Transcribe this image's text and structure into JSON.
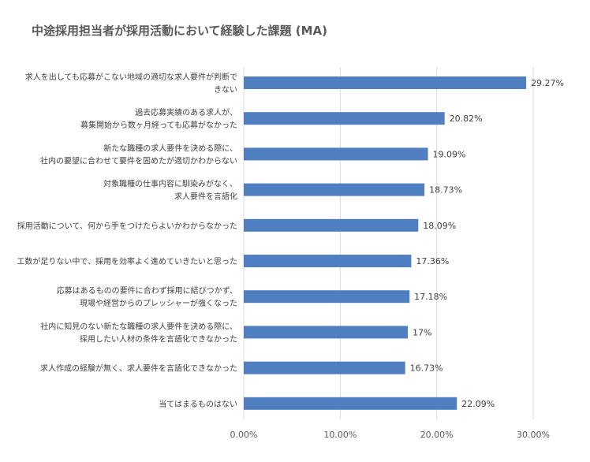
{
  "chart_data": {
    "type": "bar",
    "orientation": "horizontal",
    "title": "中途採用担当者が採用活動において経験した課題 (MA)",
    "categories": [
      "求人を出しても応募がこない地域の適切な求人要件が判断で\nきない",
      "過去応募実績のある求人が、\n募集開始から数ヶ月経っても応募がなかった",
      "新たな職種の求人要件を決める際に、\n社内の要望に合わせて要件を固めたが適切かわからない",
      "対象職種の仕事内容に馴染みがなく、\n求人要件を言語化",
      "採用活動について、何から手をつけたらよいかわからなかった",
      "工数が足りない中で、採用を効率よく進めていきたいと思った",
      "応募はあるものの要件に合わず採用に結びつかず、\n現場や経営からのプレッシャーが強くなった",
      "社内に知見のない新たな職種の求人要件を決める際に、\n採用したい人材の条件を言語化できなかった",
      "求人作成の経験が無く、求人要件を言語化できなかった",
      "当てはまるものはない"
    ],
    "values": [
      29.27,
      20.82,
      19.09,
      18.73,
      18.09,
      17.36,
      17.18,
      17,
      16.73,
      22.09
    ],
    "data_labels": [
      "29.27%",
      "20.82%",
      "19.09%",
      "18.73%",
      "18.09%",
      "17.36%",
      "17.18%",
      "17%",
      "16.73%",
      "22.09%"
    ],
    "xlim": [
      0,
      30
    ],
    "x_ticks": [
      0,
      10,
      20,
      30
    ],
    "x_tick_labels": [
      "0.00%",
      "10.00%",
      "20.00%",
      "30.00%"
    ],
    "grid": "vertical",
    "legend": "none",
    "bar_color": "#4f7fc0",
    "grid_color": "#d9d9d9"
  }
}
